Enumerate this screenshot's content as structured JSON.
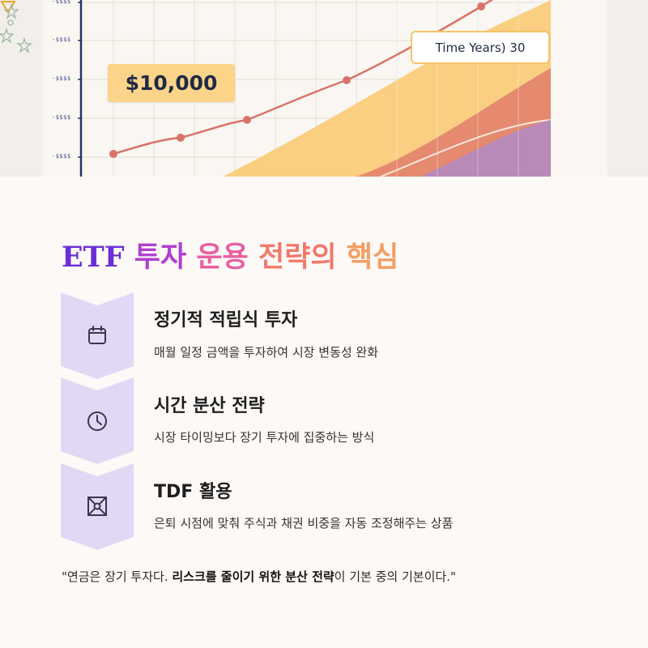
{
  "hero": {
    "price_tag": "$10,000",
    "time_label": "Time Years) 30",
    "y_ticks": [
      "-$$$$",
      "-$$$$",
      "-$$$$",
      "-$$$$",
      "-$$$$"
    ],
    "colors": {
      "line": "#d9736a",
      "area_yellow": "#fbcf82",
      "area_red": "#e58a6f",
      "area_purple": "#b989b8",
      "axis": "#27336b"
    }
  },
  "title": {
    "etf": "ETF",
    "seg1": "투자",
    "seg2": "운용",
    "seg3": "전략의",
    "seg4": "핵심"
  },
  "steps": [
    {
      "icon": "calendar-icon",
      "title": "정기적 적립식 투자",
      "desc": "매월 일정 금액을 투자하여 시장 변동성 완화"
    },
    {
      "icon": "clock-icon",
      "title": "시간 분산 전략",
      "desc": "시장 타이밍보다 장기 투자에 집중하는 방식"
    },
    {
      "icon": "balance-icon",
      "title": "TDF 활용",
      "desc": "은퇴 시점에 맞춰 주식과 채권 비중을 자동 조정해주는 상품"
    }
  ],
  "quote": {
    "before": "\"연금은 장기 투자다. ",
    "bold": "리스크를 줄이기 위한 분산 전략",
    "after": "이 기본 중의 기본이다.\""
  }
}
